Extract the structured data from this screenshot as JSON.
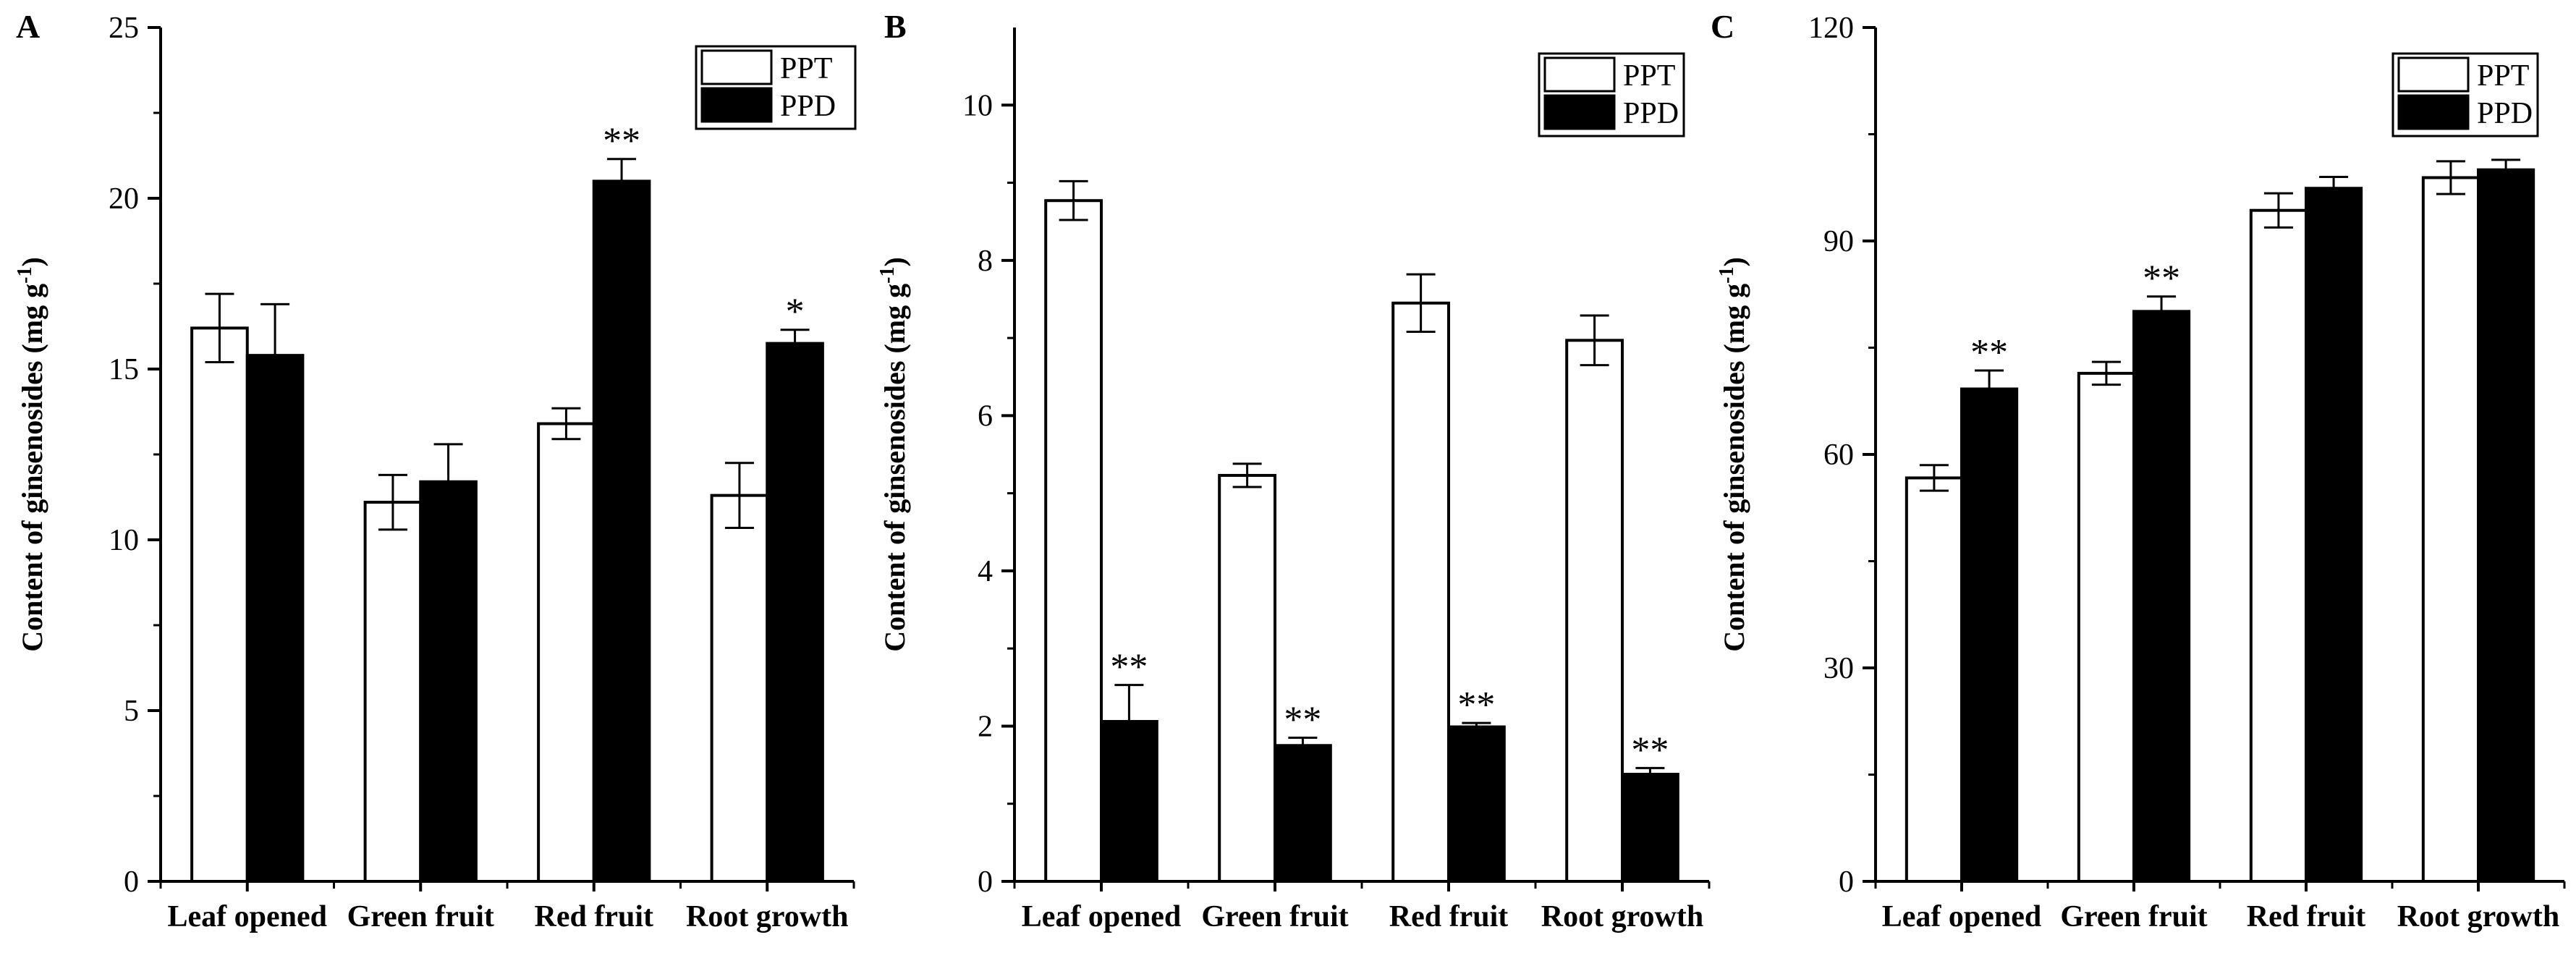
{
  "chart_data": [
    {
      "panel": "A",
      "type": "bar",
      "title": "",
      "xlabel": "",
      "ylabel": "Content of ginsenosides (mg g-1)",
      "ylabel_main": "Content of ginsenosides (mg g",
      "ylabel_sup": "-1",
      "ylabel_close": ")",
      "ylim": [
        0,
        25
      ],
      "yticks": [
        0,
        5,
        10,
        15,
        20,
        25
      ],
      "categories": [
        "Leaf opened",
        "Green fruit",
        "Red fruit",
        "Root growth"
      ],
      "series": [
        {
          "name": "PPT",
          "color": "#ffffff",
          "values": [
            16.2,
            11.1,
            13.4,
            11.3
          ],
          "errors": [
            1.0,
            0.8,
            0.45,
            0.95
          ],
          "sig": [
            "",
            "",
            "",
            ""
          ]
        },
        {
          "name": "PPD",
          "color": "#000000",
          "values": [
            15.4,
            11.7,
            20.5,
            15.75
          ],
          "errors": [
            1.5,
            1.1,
            0.65,
            0.4
          ],
          "sig": [
            "",
            "",
            "**",
            "*"
          ]
        }
      ],
      "legend": "top-right"
    },
    {
      "panel": "B",
      "type": "bar",
      "title": "",
      "xlabel": "",
      "ylabel": "Content of ginsenosides (mg g-1)",
      "ylabel_main": "Content of ginsenosides (mg g",
      "ylabel_sup": "-1",
      "ylabel_close": ")",
      "ylim": [
        0,
        11
      ],
      "yticks": [
        0,
        2,
        4,
        6,
        8,
        10
      ],
      "categories": [
        "Leaf opened",
        "Green fruit",
        "Red fruit",
        "Root growth"
      ],
      "series": [
        {
          "name": "PPT",
          "color": "#ffffff",
          "values": [
            8.77,
            5.23,
            7.45,
            6.97
          ],
          "errors": [
            0.25,
            0.15,
            0.37,
            0.32
          ],
          "sig": [
            "",
            "",
            "",
            ""
          ]
        },
        {
          "name": "PPD",
          "color": "#000000",
          "values": [
            2.06,
            1.75,
            1.99,
            1.38
          ],
          "errors": [
            0.47,
            0.1,
            0.05,
            0.08
          ],
          "sig": [
            "**",
            "**",
            "**",
            "**"
          ]
        }
      ],
      "legend": "top-right"
    },
    {
      "panel": "C",
      "type": "bar",
      "title": "",
      "xlabel": "",
      "ylabel": "Content of ginsenosides (mg g-1)",
      "ylabel_main": "Content of ginsenosides (mg g",
      "ylabel_sup": "-1",
      "ylabel_close": ")",
      "ylim": [
        0,
        120
      ],
      "yticks": [
        0,
        30,
        60,
        90,
        120
      ],
      "categories": [
        "Leaf opened",
        "Green fruit",
        "Red fruit",
        "Root growth"
      ],
      "series": [
        {
          "name": "PPT",
          "color": "#ffffff",
          "values": [
            56.7,
            71.4,
            94.3,
            98.9
          ],
          "errors": [
            1.8,
            1.6,
            2.4,
            2.3
          ],
          "sig": [
            "",
            "",
            "",
            ""
          ]
        },
        {
          "name": "PPD",
          "color": "#000000",
          "values": [
            69.2,
            80.1,
            97.4,
            100.0
          ],
          "errors": [
            2.6,
            2.1,
            1.6,
            1.4
          ],
          "sig": [
            "**",
            "**",
            "",
            ""
          ]
        }
      ],
      "legend": "top-right"
    }
  ]
}
